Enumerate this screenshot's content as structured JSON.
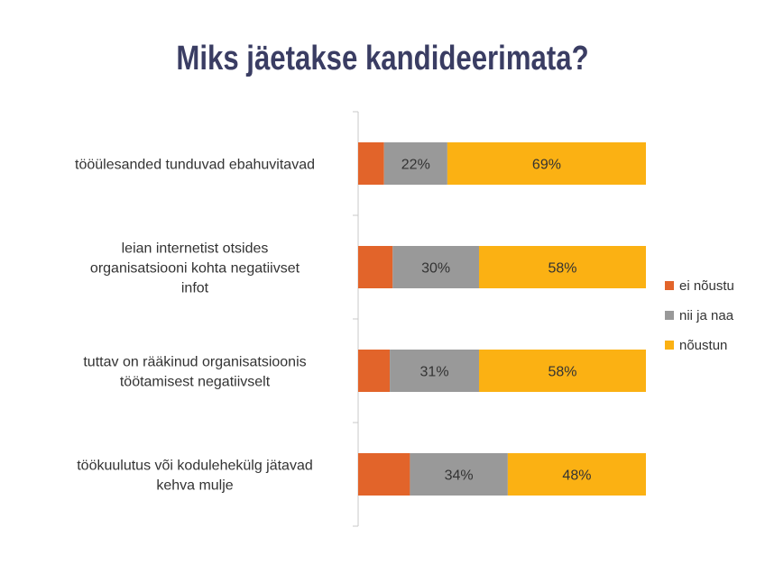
{
  "chart_data": {
    "type": "bar",
    "orientation": "horizontal",
    "stacked": true,
    "title": "Miks jäetakse kandideerimata?",
    "categories": [
      [
        "tööülesanded tunduvad ebahuvitavad"
      ],
      [
        "leian internetist otsides",
        "organisatsiooni kohta negatiivset",
        "infot"
      ],
      [
        "tuttav on rääkinud organisatsioonis",
        "töötamisest negatiivselt"
      ],
      [
        "töökuulutus või kodulehekülg jätavad",
        "kehva mulje"
      ]
    ],
    "series": [
      {
        "name": "ei nõustu",
        "color": "#e2642a",
        "values": [
          9,
          12,
          11,
          18
        ],
        "labels": [
          "",
          "",
          "",
          ""
        ]
      },
      {
        "name": "nii ja naa",
        "color": "#999999",
        "values": [
          22,
          30,
          31,
          34
        ],
        "labels": [
          "22%",
          "30%",
          "31%",
          "34%"
        ]
      },
      {
        "name": "nõustun",
        "color": "#fbb113",
        "values": [
          69,
          58,
          58,
          48
        ],
        "labels": [
          "69%",
          "58%",
          "58%",
          "48%"
        ]
      }
    ],
    "xlim": [
      0,
      100
    ],
    "legend_position": "right",
    "grid": false
  }
}
